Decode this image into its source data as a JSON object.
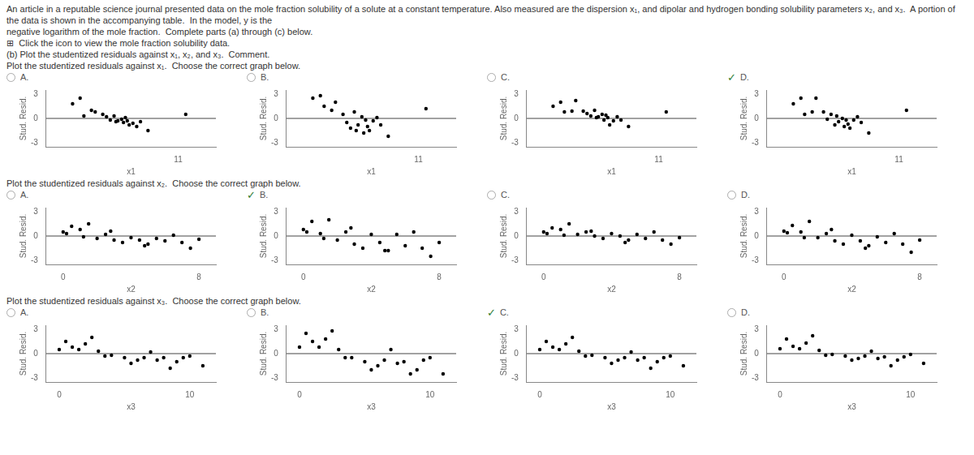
{
  "chart_data": [
    {
      "type": "scatter",
      "title": "A.",
      "annotations": [
        "An article in a reputable science journal presented data on the mole fraction solubility of a solute at a constant temperature. Also measured are the dispersion x₁, and dipolar and hydrogen bonding solubility parameters x₂, and x₃.  A portion of the data is shown in the accompanying table.  In the model, y is the",
        "negative logarithm of the mole fraction.  Complete parts (a) through (c) below.",
        "⊞  Click the icon to view the mole fraction solubility data.",
        "(b) Plot the studentized residuals against x₁, x₂, and x₃.  Comment.",
        "Plot the studentized residuals against x₁.  Choose the correct graph below."
      ],
      "xlabel": "x1",
      "ylabel": "Stud. Resid.",
      "color": "#000000",
      "grid": false,
      "x": [
        8.2,
        8.4,
        8.5,
        8.7,
        8.8,
        9.0,
        9.1,
        9.2,
        9.3,
        9.35,
        9.4,
        9.5,
        9.55,
        9.6,
        9.65,
        9.7,
        9.8,
        9.9,
        10.0,
        10.2,
        11.2
      ],
      "values": [
        1.8,
        2.5,
        0.3,
        1.0,
        0.8,
        0.5,
        0.2,
        -0.2,
        0.3,
        -0.4,
        -0.3,
        -0.1,
        -0.5,
        0.1,
        -0.3,
        -0.8,
        -0.6,
        -1.0,
        -0.4,
        -1.5,
        0.5
      ],
      "xlim": [
        7.5,
        12.0
      ],
      "xticks": [
        11
      ],
      "ylim": [
        -3.5,
        3.5
      ],
      "yticks": [
        -3,
        0,
        3
      ]
    },
    {
      "type": "scatter",
      "title": "B.",
      "xlabel": "x1",
      "ylabel": "Stud. Resid.",
      "color": "#000000",
      "grid": false,
      "x": [
        8.2,
        8.4,
        8.5,
        8.7,
        8.8,
        9.0,
        9.1,
        9.2,
        9.3,
        9.35,
        9.4,
        9.5,
        9.55,
        9.6,
        9.65,
        9.7,
        9.8,
        9.9,
        10.0,
        10.2,
        11.2
      ],
      "values": [
        2.5,
        2.8,
        1.5,
        1.0,
        2.0,
        0.5,
        -0.5,
        -1.2,
        0.8,
        -1.5,
        -0.8,
        0.2,
        -1.8,
        -0.2,
        -1.0,
        -1.5,
        -0.3,
        0.1,
        -0.8,
        -2.2,
        1.2
      ],
      "xlim": [
        7.5,
        12.0
      ],
      "xticks": [
        11
      ],
      "ylim": [
        -3.5,
        3.5
      ],
      "yticks": [
        -3,
        0,
        3
      ]
    },
    {
      "type": "scatter",
      "title": "C.",
      "xlabel": "x1",
      "ylabel": "Stud. Resid.",
      "color": "#000000",
      "grid": false,
      "x": [
        8.2,
        8.4,
        8.5,
        8.7,
        8.8,
        9.0,
        9.1,
        9.2,
        9.3,
        9.35,
        9.4,
        9.5,
        9.55,
        9.6,
        9.65,
        9.7,
        9.8,
        9.9,
        10.0,
        10.2,
        11.2
      ],
      "values": [
        1.5,
        2.0,
        0.8,
        0.9,
        2.2,
        0.9,
        0.6,
        0.3,
        1.0,
        0.1,
        0.2,
        0.5,
        -0.2,
        0.4,
        0.1,
        -0.8,
        -0.3,
        0.2,
        -0.2,
        -1.0,
        0.8
      ],
      "xlim": [
        7.5,
        12.0
      ],
      "xticks": [
        11
      ],
      "ylim": [
        -3.5,
        3.5
      ],
      "yticks": [
        -3,
        0,
        3
      ]
    },
    {
      "type": "scatter",
      "title": "D.",
      "subtitle": "✓",
      "xlabel": "x1",
      "ylabel": "Stud. Resid.",
      "color": "#000000",
      "grid": false,
      "x": [
        8.2,
        8.4,
        8.5,
        8.7,
        8.8,
        9.0,
        9.1,
        9.2,
        9.3,
        9.35,
        9.4,
        9.5,
        9.55,
        9.6,
        9.65,
        9.7,
        9.8,
        9.9,
        10.0,
        10.2,
        11.2
      ],
      "values": [
        1.8,
        2.5,
        0.5,
        0.8,
        2.5,
        0.8,
        -0.1,
        0.5,
        -0.8,
        0.3,
        -0.4,
        0.0,
        -1.0,
        -0.2,
        -0.7,
        -1.2,
        -0.2,
        0.2,
        -0.5,
        -1.8,
        1.0
      ],
      "xlim": [
        7.5,
        12.0
      ],
      "xticks": [
        11
      ],
      "ylim": [
        -3.5,
        3.5
      ],
      "yticks": [
        -3,
        0,
        3
      ]
    },
    {
      "type": "scatter",
      "title": "A.",
      "annotations": [
        "Plot the studentized residuals against x₂.  Choose the correct graph below."
      ],
      "xlabel": "x2",
      "ylabel": "Stud. Resid.",
      "color": "#000000",
      "grid": false,
      "x": [
        0.0,
        0.2,
        0.5,
        1.0,
        1.2,
        1.5,
        2.0,
        2.5,
        2.8,
        3.0,
        3.5,
        4.0,
        4.5,
        4.8,
        5.0,
        5.5,
        6.0,
        6.5,
        7.0,
        7.5,
        8.0
      ],
      "values": [
        0.5,
        0.3,
        1.2,
        0.8,
        -0.1,
        1.5,
        -0.3,
        0.2,
        0.6,
        -0.5,
        -0.8,
        -0.2,
        -0.5,
        -1.2,
        -1.0,
        -0.3,
        -0.6,
        0.1,
        -0.8,
        -1.5,
        -0.4
      ],
      "xlim": [
        -1.0,
        9.0
      ],
      "xticks": [
        0,
        8
      ],
      "ylim": [
        -3.5,
        3.5
      ],
      "yticks": [
        -3,
        0,
        3
      ]
    },
    {
      "type": "scatter",
      "title": "B.",
      "subtitle": "✓",
      "xlabel": "x2",
      "ylabel": "Stud. Resid.",
      "color": "#000000",
      "grid": false,
      "x": [
        0.0,
        0.2,
        0.5,
        1.0,
        1.2,
        1.5,
        2.0,
        2.5,
        2.8,
        3.0,
        3.5,
        4.0,
        4.5,
        4.8,
        5.0,
        5.5,
        6.0,
        6.5,
        7.0,
        7.5,
        8.0
      ],
      "values": [
        0.8,
        0.5,
        1.8,
        0.3,
        -0.3,
        2.0,
        -0.5,
        0.5,
        1.0,
        -1.0,
        -1.5,
        0.2,
        -0.8,
        -1.8,
        -1.8,
        0.2,
        -1.2,
        0.5,
        -1.5,
        -2.5,
        -0.8
      ],
      "xlim": [
        -1.0,
        9.0
      ],
      "xticks": [
        0,
        8
      ],
      "ylim": [
        -3.5,
        3.5
      ],
      "yticks": [
        -3,
        0,
        3
      ]
    },
    {
      "type": "scatter",
      "title": "C.",
      "xlabel": "x2",
      "ylabel": "Stud. Resid.",
      "color": "#000000",
      "grid": false,
      "x": [
        0.0,
        0.2,
        0.5,
        1.0,
        1.2,
        1.5,
        2.0,
        2.5,
        2.8,
        3.0,
        3.5,
        4.0,
        4.5,
        4.8,
        5.0,
        5.5,
        6.0,
        6.5,
        7.0,
        7.5,
        8.0
      ],
      "values": [
        0.5,
        0.3,
        1.0,
        0.8,
        0.1,
        1.5,
        0.2,
        0.5,
        0.6,
        0.0,
        -0.3,
        0.3,
        0.0,
        -0.8,
        -0.5,
        0.2,
        -0.3,
        0.5,
        -0.5,
        -1.0,
        -0.2
      ],
      "xlim": [
        -1.0,
        9.0
      ],
      "xticks": [
        0,
        8
      ],
      "ylim": [
        -3.5,
        3.5
      ],
      "yticks": [
        -3,
        0,
        3
      ]
    },
    {
      "type": "scatter",
      "title": "D.",
      "xlabel": "x2",
      "ylabel": "Stud. Resid.",
      "color": "#000000",
      "grid": false,
      "x": [
        0.0,
        0.2,
        0.5,
        1.0,
        1.2,
        1.5,
        2.0,
        2.5,
        2.8,
        3.0,
        3.5,
        4.0,
        4.5,
        4.8,
        5.0,
        5.5,
        6.0,
        6.5,
        7.0,
        7.5,
        8.0
      ],
      "values": [
        0.6,
        0.4,
        1.3,
        0.5,
        -0.2,
        1.8,
        -0.2,
        0.3,
        0.8,
        -0.6,
        -1.0,
        0.1,
        -0.6,
        -1.5,
        -1.2,
        -0.1,
        -0.8,
        0.3,
        -1.0,
        -2.0,
        -0.5
      ],
      "xlim": [
        -1.0,
        9.0
      ],
      "xticks": [
        0,
        8
      ],
      "ylim": [
        -3.5,
        3.5
      ],
      "yticks": [
        -3,
        0,
        3
      ]
    },
    {
      "type": "scatter",
      "title": "A.",
      "annotations": [
        "Plot the studentized residuals against x₃.  Choose the correct graph below."
      ],
      "xlabel": "x3",
      "ylabel": "Stud. Resid.",
      "color": "#000000",
      "grid": false,
      "x": [
        0.0,
        0.5,
        1.0,
        1.5,
        2.0,
        2.5,
        3.0,
        3.5,
        4.0,
        5.0,
        5.5,
        6.0,
        6.5,
        7.0,
        7.5,
        8.0,
        8.5,
        9.0,
        9.5,
        10.0,
        11.0
      ],
      "values": [
        0.5,
        1.5,
        0.8,
        0.5,
        1.2,
        2.0,
        0.3,
        -0.3,
        -0.2,
        -0.5,
        -1.2,
        -0.8,
        -0.5,
        0.2,
        -0.8,
        -0.5,
        -1.8,
        -1.0,
        -0.5,
        -0.3,
        -1.5
      ],
      "xlim": [
        -1.0,
        12.0
      ],
      "xticks": [
        0,
        10
      ],
      "ylim": [
        -3.5,
        3.5
      ],
      "yticks": [
        -3,
        0,
        3
      ]
    },
    {
      "type": "scatter",
      "title": "B.",
      "xlabel": "x3",
      "ylabel": "Stud. Resid.",
      "color": "#000000",
      "grid": false,
      "x": [
        0.0,
        0.5,
        1.0,
        1.5,
        2.0,
        2.5,
        3.0,
        3.5,
        4.0,
        5.0,
        5.5,
        6.0,
        6.5,
        7.0,
        7.5,
        8.0,
        8.5,
        9.0,
        9.5,
        10.0,
        11.0
      ],
      "values": [
        0.8,
        2.5,
        1.5,
        0.8,
        1.8,
        2.8,
        0.5,
        -0.5,
        -0.5,
        -1.0,
        -2.0,
        -1.5,
        -0.8,
        0.5,
        -1.2,
        -1.0,
        -2.5,
        -2.0,
        -0.8,
        -0.5,
        -2.5
      ],
      "xlim": [
        -1.0,
        12.0
      ],
      "xticks": [
        0,
        10
      ],
      "ylim": [
        -3.5,
        3.5
      ],
      "yticks": [
        -3,
        0,
        3
      ]
    },
    {
      "type": "scatter",
      "title": "C.",
      "subtitle": "✓",
      "xlabel": "x3",
      "ylabel": "Stud. Resid.",
      "color": "#000000",
      "grid": false,
      "x": [
        0.0,
        0.5,
        1.0,
        1.5,
        2.0,
        2.5,
        3.0,
        3.5,
        4.0,
        5.0,
        5.5,
        6.0,
        6.5,
        7.0,
        7.5,
        8.0,
        8.5,
        9.0,
        9.5,
        10.0,
        11.0
      ],
      "values": [
        0.5,
        1.5,
        0.8,
        0.5,
        1.2,
        2.0,
        0.3,
        -0.3,
        -0.2,
        -0.5,
        -1.2,
        -0.8,
        -0.5,
        0.2,
        -0.8,
        -0.5,
        -1.8,
        -1.0,
        -0.5,
        -0.3,
        -1.5
      ],
      "xlim": [
        -1.0,
        12.0
      ],
      "xticks": [
        0,
        10
      ],
      "ylim": [
        -3.5,
        3.5
      ],
      "yticks": [
        -3,
        0,
        3
      ]
    },
    {
      "type": "scatter",
      "title": "D.",
      "xlabel": "x3",
      "ylabel": "Stud. Resid.",
      "color": "#000000",
      "grid": false,
      "x": [
        0.0,
        0.5,
        1.0,
        1.5,
        2.0,
        2.5,
        3.0,
        3.5,
        4.0,
        5.0,
        5.5,
        6.0,
        6.5,
        7.0,
        7.5,
        8.0,
        8.5,
        9.0,
        9.5,
        10.0,
        11.0
      ],
      "values": [
        0.6,
        1.8,
        0.9,
        0.6,
        1.3,
        2.2,
        0.4,
        -0.2,
        -0.1,
        -0.3,
        -0.8,
        -0.6,
        -0.3,
        0.3,
        -0.6,
        -0.4,
        -1.5,
        -0.8,
        -0.4,
        -0.1,
        -1.2
      ],
      "xlim": [
        -1.0,
        12.0
      ],
      "xticks": [
        0,
        10
      ],
      "ylim": [
        -3.5,
        3.5
      ],
      "yticks": [
        -3,
        0,
        3
      ]
    }
  ]
}
